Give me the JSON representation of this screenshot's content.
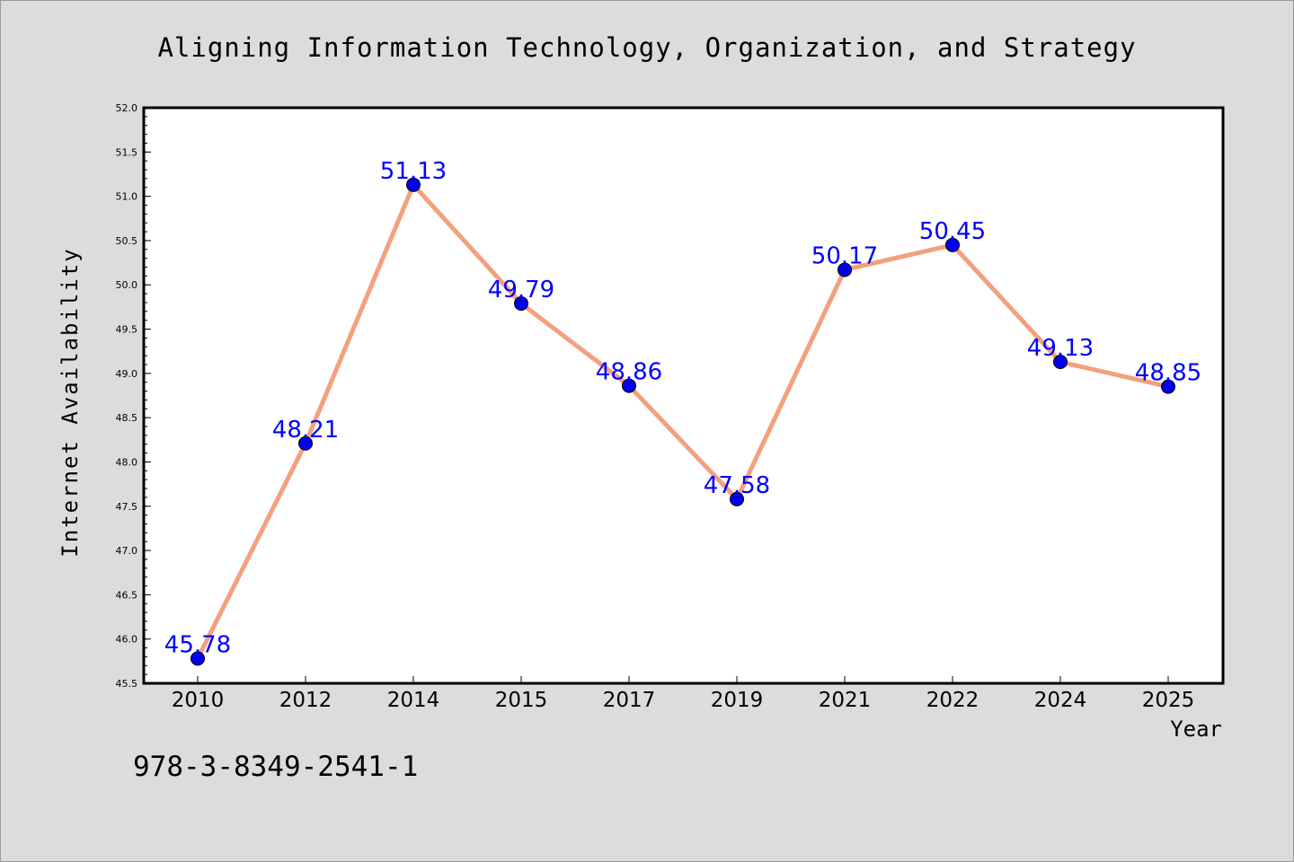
{
  "chart_data": {
    "type": "line",
    "title": "Aligning Information Technology, Organization, and Strategy",
    "xlabel": "Year",
    "ylabel": "Internet Availability",
    "categories": [
      "2010",
      "2012",
      "2014",
      "2015",
      "2017",
      "2019",
      "2021",
      "2022",
      "2024",
      "2025"
    ],
    "series": [
      {
        "values": [
          45.78,
          48.21,
          51.13,
          49.79,
          48.86,
          47.58,
          50.17,
          50.45,
          49.13,
          48.85
        ],
        "labels": [
          "45.78",
          "48.21",
          "51.13",
          "49.79",
          "48.86",
          "47.58",
          "50.17",
          "50.45",
          "49.13",
          "48.85"
        ],
        "line_color": "#f4a07e",
        "marker_color": "#0000ee"
      }
    ],
    "ylim": [
      45.5,
      52.0
    ],
    "yticks": [
      "45.5",
      "46.0",
      "46.5",
      "47.0",
      "47.5",
      "48.0",
      "48.5",
      "49.0",
      "49.5",
      "50.0",
      "50.5",
      "51.0",
      "51.5",
      "52.0"
    ],
    "grid": false,
    "legend": false
  },
  "footer": {
    "isbn": "978-3-8349-2541-1"
  },
  "colors": {
    "background": "#dcdcdc",
    "plot_area": "#ffffff",
    "data_label": "#0000ff"
  }
}
